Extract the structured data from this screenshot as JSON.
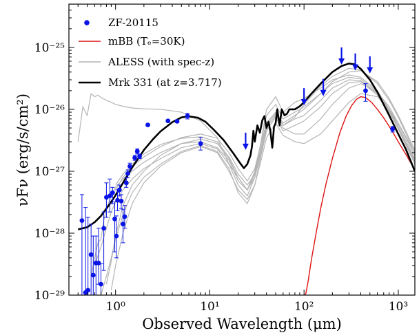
{
  "chart_data": {
    "type": "scatter",
    "title": "",
    "xlabel": "Observed Wavelength (μm)",
    "ylabel": "νFν (erg/s/cm²)",
    "xscale": "log",
    "yscale": "log",
    "xlim": [
      0.32,
      1500
    ],
    "ylim": [
      1e-29,
      5e-25
    ],
    "x_ticks": [
      {
        "value": 1,
        "label": "10⁰"
      },
      {
        "value": 10,
        "label": "10¹"
      },
      {
        "value": 100,
        "label": "10²"
      },
      {
        "value": 1000,
        "label": "10³"
      }
    ],
    "y_ticks": [
      {
        "value": 1e-29,
        "label": "10⁻²⁹"
      },
      {
        "value": 1e-28,
        "label": "10⁻²⁸"
      },
      {
        "value": 1e-27,
        "label": "10⁻²⁷"
      },
      {
        "value": 1e-26,
        "label": "10⁻²⁶"
      },
      {
        "value": 1e-25,
        "label": "10⁻²⁵"
      }
    ],
    "legend_position": "top-left",
    "colors": {
      "photometry": "#0a14e6",
      "mbb": "#dd1111",
      "aless": "#b4b4b4",
      "mrk331": "#000000"
    },
    "series": [
      {
        "name": "ZF-20115",
        "kind": "points_with_errorbars",
        "points": [
          {
            "x": 0.44,
            "y": 1.6e-28,
            "lo": 1e-29,
            "hi": 4.2e-28
          },
          {
            "x": 0.48,
            "y": 1.1e-29,
            "lo": 1e-29,
            "hi": 2.6e-28
          },
          {
            "x": 0.51,
            "y": 1.2e-29,
            "lo": 1e-29,
            "hi": 1.8e-28
          },
          {
            "x": 0.55,
            "y": 4.5e-29,
            "lo": 1e-29,
            "hi": 1.4e-28
          },
          {
            "x": 0.58,
            "y": 2.1e-29,
            "lo": 1e-29,
            "hi": 9e-29
          },
          {
            "x": 0.62,
            "y": 3.3e-29,
            "lo": 1e-29,
            "hi": 9e-29
          },
          {
            "x": 0.66,
            "y": 3.3e-29,
            "lo": 1.5e-29,
            "hi": 1.2e-28
          },
          {
            "x": 0.7,
            "y": 1.5e-29,
            "lo": 1e-29,
            "hi": 3.2e-29
          },
          {
            "x": 0.75,
            "y": 1.2e-28,
            "lo": 2.5e-29,
            "hi": 2.2e-28
          },
          {
            "x": 0.8,
            "y": 3.8e-28,
            "lo": 1.8e-28,
            "hi": 6.5e-28
          },
          {
            "x": 0.87,
            "y": 4e-28,
            "lo": 2.2e-28,
            "hi": 7.5e-28
          },
          {
            "x": 0.93,
            "y": 4.5e-28,
            "lo": 3e-28,
            "hi": 5.5e-28
          },
          {
            "x": 0.98,
            "y": 1.7e-28,
            "lo": 5e-29,
            "hi": 3.2e-28
          },
          {
            "x": 1.02,
            "y": 9e-29,
            "lo": 4e-29,
            "hi": 1.9e-28
          },
          {
            "x": 1.05,
            "y": 3.4e-28,
            "lo": 2.3e-28,
            "hi": 5e-28
          },
          {
            "x": 1.1,
            "y": 5e-28,
            "lo": 4e-28,
            "hi": 6e-28
          },
          {
            "x": 1.15,
            "y": 3.3e-28,
            "lo": 2.5e-28,
            "hi": 4.2e-28
          },
          {
            "x": 1.2,
            "y": 1.4e-28,
            "lo": 7e-29,
            "hi": 2.4e-28
          },
          {
            "x": 1.25,
            "y": 1.85e-28,
            "lo": 1.2e-28,
            "hi": 2.8e-28
          },
          {
            "x": 1.3,
            "y": 6.5e-28,
            "lo": 5.5e-28,
            "hi": 7.8e-28
          },
          {
            "x": 1.35,
            "y": 9.2e-28,
            "lo": 8e-28,
            "hi": 1.05e-27
          },
          {
            "x": 1.42,
            "y": 1.2e-27,
            "lo": 1.05e-27,
            "hi": 1.35e-27
          },
          {
            "x": 1.6,
            "y": 1.65e-27,
            "lo": 1.5e-27,
            "hi": 1.8e-27
          },
          {
            "x": 1.7,
            "y": 2.1e-27,
            "lo": 1.9e-27,
            "hi": 2.3e-27
          },
          {
            "x": 1.8,
            "y": 1.75e-27,
            "lo": 1.6e-27,
            "hi": 1.9e-27
          },
          {
            "x": 2.2,
            "y": 5.6e-27,
            "lo": 5.4e-27,
            "hi": 5.8e-27
          },
          {
            "x": 3.6,
            "y": 6.5e-27,
            "lo": 6.2e-27,
            "hi": 6.8e-27
          },
          {
            "x": 4.5,
            "y": 6.4e-27,
            "lo": 6.1e-27,
            "hi": 6.7e-27
          },
          {
            "x": 5.8,
            "y": 7.8e-27,
            "lo": 7e-27,
            "hi": 8.6e-27
          },
          {
            "x": 8.0,
            "y": 2.8e-27,
            "lo": 2.2e-27,
            "hi": 3.5e-27
          },
          {
            "x": 450,
            "y": 2e-26,
            "lo": 1.35e-26,
            "hi": 2.6e-26
          },
          {
            "x": 870,
            "y": 4.8e-27,
            "lo": 4.3e-27,
            "hi": 5.3e-27
          }
        ],
        "upper_limits": [
          {
            "x": 24,
            "y": 4.2e-27
          },
          {
            "x": 100,
            "y": 2.2e-26
          },
          {
            "x": 160,
            "y": 3.1e-26
          },
          {
            "x": 250,
            "y": 1e-25
          },
          {
            "x": 350,
            "y": 8e-26
          },
          {
            "x": 500,
            "y": 7.2e-26
          }
        ]
      },
      {
        "name": "mBB (Tₑ=30K)",
        "kind": "line",
        "x": [
          100,
          105,
          110,
          120,
          135,
          150,
          170,
          200,
          240,
          280,
          320,
          360,
          400,
          450,
          520,
          600,
          700,
          850,
          1000,
          1200,
          1500
        ],
        "y": [
          9e-30,
          1.1e-29,
          1.6e-29,
          3.8e-29,
          1.05e-28,
          2.5e-28,
          6e-28,
          1.6e-27,
          4.2e-27,
          7.8e-27,
          1.15e-26,
          1.45e-26,
          1.6e-26,
          1.55e-26,
          1.3e-26,
          1e-26,
          7.3e-27,
          4.6e-27,
          3e-27,
          1.9e-27,
          1.05e-27
        ]
      },
      {
        "name": "Mrk 331 (at z=3.717)",
        "kind": "line",
        "x": [
          0.4,
          0.5,
          0.6,
          0.7,
          0.8,
          0.9,
          1.0,
          1.2,
          1.5,
          2.0,
          2.5,
          3.0,
          4.0,
          5.0,
          6.0,
          7.5,
          9.0,
          11.0,
          14.0,
          18.0,
          21.0,
          23.0,
          25.0,
          27.0,
          28.0,
          29.0,
          30.0,
          32.0,
          34.0,
          36.0,
          38.0,
          40.0,
          42.0,
          44.0,
          46.0,
          48.0,
          50.0,
          52.0,
          55.0,
          58.0,
          62.0,
          66.0,
          70.0,
          80.0,
          90.0,
          100.0,
          120.0,
          150.0,
          200.0,
          250.0,
          300.0,
          350.0,
          400.0,
          500.0,
          600.0,
          700.0,
          800.0,
          1000.0,
          1200.0,
          1500.0
        ],
        "y": [
          1.15e-28,
          1.25e-28,
          1.5e-28,
          1.9e-28,
          2.5e-28,
          3.2e-28,
          4.1e-28,
          6.5e-28,
          1.15e-27,
          2.2e-27,
          3.3e-27,
          4.4e-27,
          6.2e-27,
          7.4e-27,
          7.7e-27,
          7.3e-27,
          6.3e-27,
          4.7e-27,
          3.2e-27,
          1.9e-27,
          1.35e-27,
          1.12e-27,
          1.3e-27,
          1.8e-27,
          2.5e-27,
          4.5e-27,
          3e-27,
          5.5e-27,
          4.2e-27,
          6.6e-27,
          7.8e-27,
          5e-27,
          6.3e-27,
          4.4e-27,
          2.4e-27,
          5.2e-27,
          6e-27,
          1e-26,
          5.5e-27,
          1e-26,
          8e-27,
          8.5e-27,
          1e-26,
          1e-26,
          1.12e-26,
          1.3e-26,
          1.8e-26,
          2.6e-26,
          4e-26,
          5e-26,
          5.5e-26,
          5.3e-26,
          4.5e-26,
          3e-26,
          1.9e-26,
          1.2e-26,
          8e-27,
          4e-27,
          2.3e-27,
          1e-27
        ]
      }
    ],
    "aless": {
      "name": "ALESS (with spec-z)",
      "kind": "line_family",
      "curves": [
        {
          "x": [
            0.4,
            0.45,
            0.5,
            0.55,
            0.6,
            0.65,
            0.7,
            0.8,
            0.9,
            1.0,
            1.2,
            1.5,
            2.0,
            3.0,
            5.0,
            8.0,
            12.0,
            16.0,
            20.0,
            25.0,
            30.0,
            35.0,
            40.0,
            50.0,
            60.0,
            80.0,
            100.0,
            150.0,
            200.0,
            300.0,
            400.0,
            600.0,
            800.0,
            1000.0,
            1500.0
          ],
          "y": [
            3e-27,
            1.1e-26,
            8e-27,
            1.8e-26,
            1.6e-26,
            1.7e-26,
            1.55e-26,
            1.4e-26,
            1.3e-26,
            1.2e-26,
            1.12e-26,
            1.05e-26,
            1.02e-26,
            1e-26,
            9e-27,
            6.5e-27,
            3.5e-27,
            1.3e-27,
            8e-28,
            5e-28,
            9e-28,
            3e-27,
            1e-26,
            1.6e-26,
            9e-27,
            1.3e-26,
            1.5e-26,
            2.2e-26,
            3e-26,
            3.6e-26,
            3.3e-26,
            2e-26,
            1e-26,
            5e-27,
            1.5e-27
          ]
        },
        {
          "x": [
            0.55,
            0.6,
            0.65,
            0.7,
            0.75,
            0.8,
            0.9,
            1.0,
            1.2,
            1.5,
            2.0,
            3.0,
            5.0,
            8.0,
            12.0,
            16.0,
            20.0,
            25.0,
            30.0,
            35.0,
            40.0,
            50.0,
            60.0,
            80.0,
            100.0,
            150.0,
            200.0,
            300.0,
            400.0,
            600.0,
            800.0,
            1000.0,
            1500.0
          ],
          "y": [
            2e-29,
            4e-29,
            7e-29,
            8e-29,
            1.6e-28,
            2.5e-28,
            4e-28,
            5.5e-28,
            7.5e-28,
            1e-27,
            1.4e-27,
            2e-27,
            2.8e-27,
            3e-27,
            2.4e-27,
            1.5e-27,
            7e-28,
            5e-28,
            1e-27,
            3e-27,
            8e-27,
            1.2e-26,
            7e-27,
            9e-27,
            1.1e-26,
            1.8e-26,
            2.6e-26,
            3.3e-26,
            3.1e-26,
            1.9e-26,
            1e-26,
            5.5e-27,
            1.6e-27
          ]
        },
        {
          "x": [
            0.6,
            0.7,
            0.8,
            0.9,
            1.0,
            1.2,
            1.5,
            2.0,
            3.0,
            5.0,
            8.0,
            12.0,
            16.0,
            20.0,
            25.0,
            30.0,
            35.0,
            40.0,
            50.0,
            60.0,
            80.0,
            100.0,
            150.0,
            200.0,
            300.0,
            400.0,
            600.0,
            800.0,
            1000.0,
            1500.0
          ],
          "y": [
            3e-29,
            6e-29,
            1.2e-28,
            2.2e-28,
            3.2e-28,
            5e-28,
            7.5e-28,
            1.1e-27,
            1.6e-27,
            2.4e-27,
            2.8e-27,
            2.3e-27,
            1.3e-27,
            6e-28,
            4e-28,
            8e-28,
            2.2e-27,
            6e-27,
            9e-27,
            5.5e-27,
            7e-27,
            8e-27,
            1.4e-26,
            2.2e-26,
            3e-26,
            2.9e-26,
            1.8e-26,
            9.5e-27,
            5e-27,
            1.4e-27
          ]
        },
        {
          "x": [
            0.7,
            0.8,
            0.9,
            1.0,
            1.2,
            1.5,
            2.0,
            3.0,
            5.0,
            8.0,
            12.0,
            16.0,
            20.0,
            25.0,
            30.0,
            35.0,
            40.0,
            50.0,
            60.0,
            80.0,
            100.0,
            150.0,
            200.0,
            300.0,
            400.0,
            600.0,
            800.0,
            1000.0,
            1500.0
          ],
          "y": [
            1e-29,
            2e-29,
            4e-29,
            8e-29,
            2e-28,
            4.5e-28,
            8e-28,
            1.3e-27,
            2.1e-27,
            2.6e-27,
            2.1e-27,
            1.1e-27,
            4.5e-28,
            3e-28,
            6e-28,
            1.8e-27,
            4.5e-27,
            7.5e-27,
            4.5e-27,
            5.5e-27,
            6.5e-27,
            1.1e-26,
            1.8e-26,
            2.7e-26,
            2.8e-26,
            1.7e-26,
            9e-27,
            4.8e-27,
            1.3e-27
          ]
        },
        {
          "x": [
            0.8,
            0.9,
            1.0,
            1.2,
            1.5,
            2.0,
            3.0,
            5.0,
            8.0,
            12.0,
            16.0,
            20.0,
            25.0,
            30.0,
            35.0,
            40.0,
            50.0,
            60.0,
            80.0,
            100.0,
            150.0,
            200.0,
            300.0,
            400.0,
            600.0,
            800.0,
            1000.0,
            1500.0
          ],
          "y": [
            1.5e-29,
            3.5e-29,
            9e-29,
            2.8e-28,
            6e-28,
            1e-27,
            1.8e-27,
            2.8e-27,
            3.3e-27,
            2.8e-27,
            1.6e-27,
            8e-28,
            5e-28,
            8e-28,
            2e-27,
            5e-27,
            8e-27,
            5e-27,
            4e-27,
            4e-27,
            7e-27,
            1.2e-26,
            2.2e-26,
            2.6e-26,
            1.9e-26,
            1.1e-26,
            6e-27,
            1.8e-27
          ]
        },
        {
          "x": [
            0.9,
            1.0,
            1.2,
            1.5,
            2.0,
            3.0,
            5.0,
            8.0,
            12.0,
            16.0,
            20.0,
            25.0,
            30.0,
            35.0,
            40.0,
            50.0,
            60.0,
            80.0,
            100.0,
            150.0,
            200.0,
            300.0,
            400.0,
            600.0,
            800.0,
            1000.0,
            1500.0
          ],
          "y": [
            1.2e-29,
            3e-29,
            1e-28,
            3e-28,
            6.5e-28,
            1.2e-27,
            2e-27,
            2.5e-27,
            2e-27,
            1e-27,
            5e-28,
            3.5e-28,
            6e-28,
            1.5e-27,
            3.5e-27,
            6e-27,
            3.8e-27,
            3e-27,
            2.8e-27,
            4e-27,
            6.5e-27,
            1.3e-26,
            1.8e-26,
            1.6e-26,
            1e-26,
            6e-27,
            2e-27
          ]
        },
        {
          "x": [
            1.0,
            1.2,
            1.5,
            2.0,
            3.0,
            5.0,
            8.0,
            12.0,
            16.0,
            20.0,
            25.0,
            30.0,
            35.0,
            40.0,
            50.0,
            60.0,
            80.0,
            100.0,
            150.0,
            200.0,
            300.0,
            400.0,
            600.0,
            800.0,
            1000.0,
            1500.0
          ],
          "y": [
            5e-28,
            8e-28,
            1.2e-27,
            1.7e-27,
            2.5e-27,
            3.5e-27,
            4e-27,
            3.4e-27,
            2e-27,
            1.1e-27,
            7e-28,
            1.1e-27,
            2.8e-27,
            6e-27,
            9e-27,
            6e-27,
            8e-27,
            1e-26,
            1.8e-26,
            2.8e-26,
            4e-26,
            4.2e-26,
            2.8e-26,
            1.5e-26,
            8e-27,
            2.2e-27
          ]
        },
        {
          "x": [
            1.0,
            1.2,
            1.5,
            2.0,
            3.0,
            5.0,
            8.0,
            12.0,
            16.0,
            20.0,
            25.0,
            30.0,
            35.0,
            40.0,
            50.0,
            60.0,
            80.0,
            100.0,
            150.0,
            200.0,
            300.0,
            400.0,
            600.0,
            800.0,
            1000.0,
            1500.0
          ],
          "y": [
            6e-28,
            9e-28,
            1.3e-27,
            1.9e-27,
            2.7e-27,
            3.4e-27,
            3.6e-27,
            3e-27,
            1.7e-27,
            9e-28,
            6e-28,
            9e-28,
            2.4e-27,
            5.5e-27,
            8.5e-27,
            5.5e-27,
            7.5e-27,
            1.2e-26,
            2.4e-26,
            3.4e-26,
            4.6e-26,
            4.3e-26,
            2.6e-26,
            1.4e-26,
            7.5e-27,
            2e-27
          ]
        }
      ]
    },
    "legend": [
      {
        "label": "ZF-20115",
        "style": "marker",
        "color": "#0a14e6"
      },
      {
        "label": "mBB (Tₑ=30K)",
        "style": "line",
        "color": "#dd1111"
      },
      {
        "label": "ALESS (with spec-z)",
        "style": "line",
        "color": "#b4b4b4"
      },
      {
        "label": "Mrk 331 (at z=3.717)",
        "style": "line-thick",
        "color": "#000000"
      }
    ]
  }
}
